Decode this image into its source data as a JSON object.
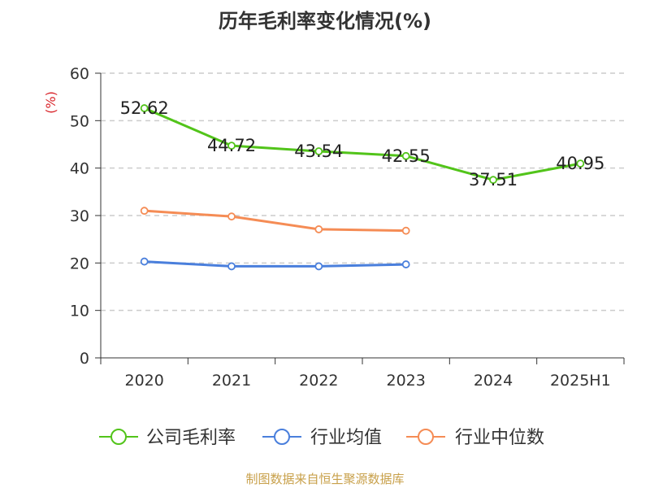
{
  "chart_title": "历年毛利率变化情况(%)",
  "source_note": "制图数据来自恒生聚源数据库",
  "chart_data": {
    "type": "line",
    "title": "历年毛利率变化情况(%)",
    "ylabel": "(%)",
    "xlabel": "",
    "ylim": [
      0,
      60
    ],
    "y_ticks": [
      "0",
      "10",
      "20",
      "30",
      "40",
      "50",
      "60"
    ],
    "grid": true,
    "legend_position": "bottom",
    "categories": [
      "2020",
      "2021",
      "2022",
      "2023",
      "2024",
      "2025H1"
    ],
    "series": [
      {
        "name": "公司毛利率",
        "color": "#52c41a",
        "values": [
          52.62,
          44.72,
          43.54,
          42.55,
          37.51,
          40.95
        ],
        "labels": [
          "52.62",
          "44.72",
          "43.54",
          "42.55",
          "37.51",
          "40.95"
        ]
      },
      {
        "name": "行业均值",
        "color": "#4a7fdc",
        "values": [
          20.3,
          19.3,
          19.3,
          19.7,
          null,
          null
        ]
      },
      {
        "name": "行业中位数",
        "color": "#f58c55",
        "values": [
          31.0,
          29.8,
          27.1,
          26.8,
          null,
          null
        ]
      }
    ]
  }
}
